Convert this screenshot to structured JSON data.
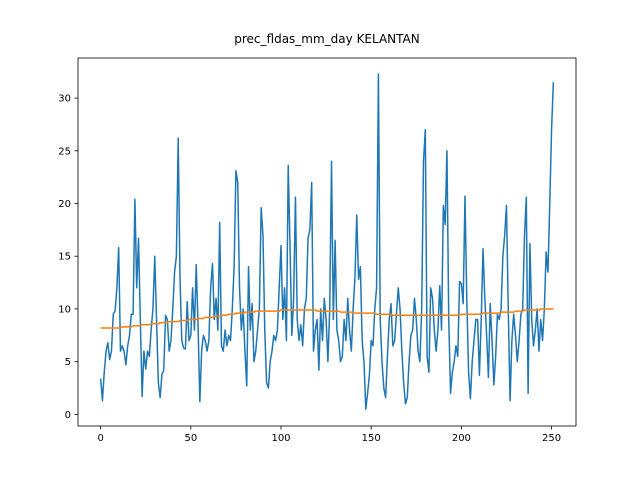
{
  "chart_data": {
    "type": "line",
    "title": "prec_fldas_mm_day KELANTAN",
    "x": [
      0,
      1,
      2,
      3,
      4,
      5,
      6,
      7,
      8,
      9,
      10,
      11,
      12,
      13,
      14,
      15,
      16,
      17,
      18,
      19,
      20,
      21,
      22,
      23,
      24,
      25,
      26,
      27,
      28,
      29,
      30,
      31,
      32,
      33,
      34,
      35,
      36,
      37,
      38,
      39,
      40,
      41,
      42,
      43,
      44,
      45,
      46,
      47,
      48,
      49,
      50,
      51,
      52,
      53,
      54,
      55,
      56,
      57,
      58,
      59,
      60,
      61,
      62,
      63,
      64,
      65,
      66,
      67,
      68,
      69,
      70,
      71,
      72,
      73,
      74,
      75,
      76,
      77,
      78,
      79,
      80,
      81,
      82,
      83,
      84,
      85,
      86,
      87,
      88,
      89,
      90,
      91,
      92,
      93,
      94,
      95,
      96,
      97,
      98,
      99,
      100,
      101,
      102,
      103,
      104,
      105,
      106,
      107,
      108,
      109,
      110,
      111,
      112,
      113,
      114,
      115,
      116,
      117,
      118,
      119,
      120,
      121,
      122,
      123,
      124,
      125,
      126,
      127,
      128,
      129,
      130,
      131,
      132,
      133,
      134,
      135,
      136,
      137,
      138,
      139,
      140,
      141,
      142,
      143,
      144,
      145,
      146,
      147,
      148,
      149,
      150,
      151,
      152,
      153,
      154,
      155,
      156,
      157,
      158,
      159,
      160,
      161,
      162,
      163,
      164,
      165,
      166,
      167,
      168,
      169,
      170,
      171,
      172,
      173,
      174,
      175,
      176,
      177,
      178,
      179,
      180,
      181,
      182,
      183,
      184,
      185,
      186,
      187,
      188,
      189,
      190,
      191,
      192,
      193,
      194,
      195,
      196,
      197,
      198,
      199,
      200,
      201,
      202,
      203,
      204,
      205,
      206,
      207,
      208,
      209,
      210,
      211,
      212,
      213,
      214,
      215,
      216,
      217,
      218,
      219,
      220,
      221,
      222,
      223,
      224,
      225,
      226,
      227,
      228,
      229,
      230,
      231,
      232,
      233,
      234,
      235,
      236,
      237,
      238,
      239,
      240,
      241,
      242,
      243,
      244,
      245,
      246,
      247,
      248,
      249,
      250,
      251
    ],
    "series": [
      {
        "color": "#1f77b4",
        "values": [
          3.4,
          1.3,
          4,
          6,
          6.8,
          5.2,
          6,
          9.5,
          9.8,
          12,
          15.8,
          6,
          6.5,
          6,
          4.7,
          6.5,
          7.5,
          9.5,
          9.5,
          20.4,
          12,
          16.7,
          9,
          1.7,
          6,
          4.3,
          6,
          5.5,
          8,
          10,
          15,
          9,
          3,
          1.6,
          3.8,
          4.2,
          9.4,
          9,
          6,
          7,
          10,
          13.5,
          15,
          26.2,
          13,
          7,
          6.3,
          6.2,
          10.7,
          7,
          7.5,
          12,
          8,
          14.2,
          8.5,
          1.2,
          6,
          7.5,
          7,
          6,
          7,
          12,
          14.3,
          9,
          11,
          8,
          18.2,
          6.5,
          6,
          8,
          6.5,
          7.5,
          7,
          10,
          14,
          23.1,
          22,
          12,
          8,
          10,
          6,
          2.7,
          14,
          8,
          10.5,
          5,
          6,
          8,
          10,
          19.6,
          17,
          8,
          3,
          2.5,
          5,
          6,
          7.5,
          7,
          8,
          12,
          16,
          9,
          12,
          7,
          23.6,
          16,
          7.5,
          11,
          20.6,
          9,
          7,
          8.5,
          6.5,
          10,
          11,
          16.7,
          17.5,
          22,
          6,
          8,
          9,
          4.2,
          10,
          7,
          11,
          9,
          5,
          10,
          24,
          9,
          16.5,
          8,
          7,
          5,
          5.5,
          9,
          7,
          11,
          8,
          6,
          10,
          13,
          18.9,
          12.8,
          14,
          7,
          5,
          0.5,
          2,
          3.7,
          7,
          6.5,
          10,
          12,
          32.3,
          9,
          5,
          2.5,
          1.6,
          5.5,
          9,
          10.5,
          6.5,
          7,
          9.5,
          12,
          10,
          6,
          3,
          1,
          1.6,
          5,
          7.5,
          8,
          11,
          9,
          6,
          5,
          10,
          24,
          27,
          5.5,
          4,
          12,
          11,
          8,
          6,
          8,
          12.2,
          8,
          19.8,
          18,
          25,
          9,
          2,
          4,
          5,
          6.5,
          5.5,
          12.6,
          12.4,
          10.5,
          20.7,
          11,
          4,
          1.5,
          5,
          7,
          9,
          9,
          3.7,
          9,
          15.7,
          11,
          7.5,
          3.5,
          10.5,
          7,
          2.8,
          5.5,
          9.5,
          9,
          10,
          15,
          17,
          19.8,
          10,
          1.3,
          7,
          9.5,
          7.5,
          5,
          7,
          9.5,
          10,
          17,
          20.6,
          2,
          16.2,
          9,
          6.5,
          8,
          10,
          6,
          9,
          7,
          10,
          15.4,
          13.5,
          20,
          27,
          31.5
        ]
      },
      {
        "color": "#ff7f0e",
        "values": [
          8.2,
          8.2,
          8.2,
          8.2,
          8.2,
          8.2,
          8.2,
          8.2,
          8.2,
          8.2,
          8.2,
          8.2,
          8.3,
          8.3,
          8.3,
          8.3,
          8.3,
          8.3,
          8.4,
          8.4,
          8.4,
          8.4,
          8.4,
          8.5,
          8.5,
          8.5,
          8.5,
          8.5,
          8.6,
          8.6,
          8.6,
          8.6,
          8.6,
          8.7,
          8.7,
          8.7,
          8.7,
          8.7,
          8.8,
          8.8,
          8.8,
          8.8,
          8.8,
          8.8,
          8.9,
          8.9,
          8.9,
          8.9,
          8.9,
          9.0,
          9.0,
          9.0,
          9.0,
          9.0,
          9.1,
          9.1,
          9.1,
          9.1,
          9.2,
          9.2,
          9.2,
          9.2,
          9.2,
          9.3,
          9.3,
          9.3,
          9.3,
          9.4,
          9.4,
          9.4,
          9.4,
          9.5,
          9.5,
          9.5,
          9.5,
          9.6,
          9.6,
          9.6,
          9.6,
          9.6,
          9.7,
          9.7,
          9.7,
          9.7,
          9.7,
          9.7,
          9.8,
          9.8,
          9.8,
          9.8,
          9.8,
          9.8,
          9.8,
          9.8,
          9.8,
          9.8,
          9.8,
          9.8,
          9.8,
          9.8,
          9.9,
          9.9,
          9.9,
          9.9,
          9.9,
          9.9,
          9.9,
          9.9,
          9.9,
          9.9,
          9.9,
          9.9,
          9.9,
          9.9,
          9.9,
          9.9,
          9.9,
          9.9,
          9.9,
          9.9,
          9.8,
          9.8,
          9.8,
          9.8,
          9.8,
          9.8,
          9.8,
          9.8,
          9.8,
          9.8,
          9.8,
          9.8,
          9.8,
          9.7,
          9.7,
          9.7,
          9.7,
          9.7,
          9.7,
          9.7,
          9.6,
          9.6,
          9.6,
          9.6,
          9.6,
          9.6,
          9.6,
          9.6,
          9.6,
          9.6,
          9.6,
          9.6,
          9.6,
          9.5,
          9.5,
          9.5,
          9.5,
          9.5,
          9.5,
          9.5,
          9.5,
          9.5,
          9.4,
          9.4,
          9.4,
          9.4,
          9.4,
          9.4,
          9.4,
          9.4,
          9.4,
          9.4,
          9.4,
          9.4,
          9.4,
          9.4,
          9.4,
          9.4,
          9.4,
          9.4,
          9.4,
          9.4,
          9.4,
          9.4,
          9.4,
          9.4,
          9.4,
          9.4,
          9.4,
          9.4,
          9.4,
          9.4,
          9.4,
          9.4,
          9.4,
          9.4,
          9.4,
          9.4,
          9.4,
          9.4,
          9.5,
          9.5,
          9.5,
          9.5,
          9.5,
          9.5,
          9.5,
          9.5,
          9.5,
          9.5,
          9.5,
          9.5,
          9.6,
          9.6,
          9.6,
          9.6,
          9.6,
          9.6,
          9.6,
          9.6,
          9.6,
          9.6,
          9.7,
          9.7,
          9.7,
          9.7,
          9.7,
          9.7,
          9.7,
          9.7,
          9.8,
          9.8,
          9.8,
          9.8,
          9.8,
          9.9,
          9.9,
          9.9,
          9.9,
          9.9,
          9.9,
          9.9,
          9.9,
          9.9,
          10.0,
          10.0,
          10.0,
          10.0,
          10.0,
          10.0,
          10.0,
          10.0
        ]
      }
    ],
    "xlim": [
      -12.55,
      263.55
    ],
    "ylim": [
      -1.1,
      33.8
    ],
    "xticks": [
      0,
      50,
      100,
      150,
      200,
      250
    ],
    "yticks": [
      0,
      5,
      10,
      15,
      20,
      25,
      30
    ],
    "grid": false
  }
}
